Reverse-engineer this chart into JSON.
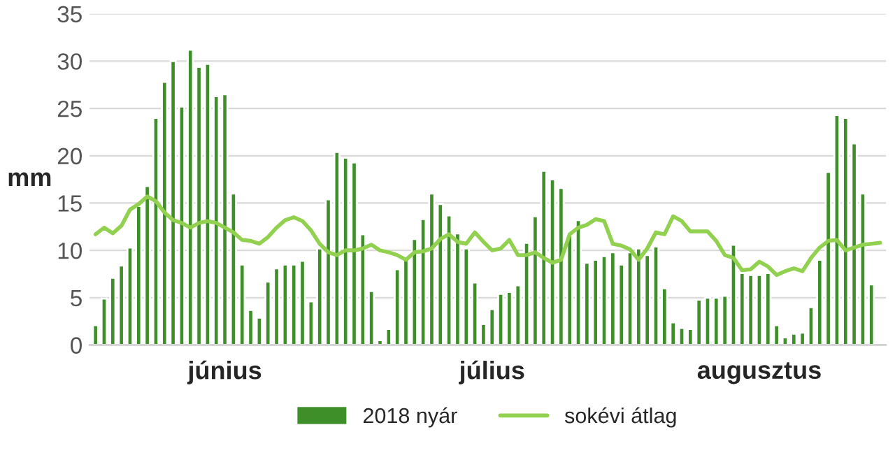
{
  "chart_data": {
    "type": "bar",
    "ylabel": "mm",
    "categories": [
      null,
      null,
      null,
      null,
      null,
      null,
      null,
      null,
      null,
      null,
      null,
      null,
      null,
      null,
      null,
      "június",
      null,
      null,
      null,
      null,
      null,
      null,
      null,
      null,
      null,
      null,
      null,
      null,
      null,
      null,
      null,
      null,
      null,
      null,
      null,
      null,
      null,
      null,
      null,
      null,
      null,
      null,
      null,
      null,
      null,
      null,
      "július",
      null,
      null,
      null,
      null,
      null,
      null,
      null,
      null,
      null,
      null,
      null,
      null,
      null,
      null,
      null,
      null,
      null,
      null,
      null,
      null,
      null,
      null,
      null,
      null,
      null,
      null,
      null,
      null,
      null,
      null,
      "augusztus",
      null,
      null,
      null,
      null,
      null,
      null,
      null,
      null,
      null,
      null,
      null,
      null,
      null,
      null
    ],
    "series": [
      {
        "name": "2018 nyár",
        "color": "#3e8e2a",
        "values": [
          2.1,
          4.9,
          7.1,
          8.4,
          10.3,
          14.7,
          16.8,
          24.0,
          27.8,
          30.0,
          25.2,
          31.2,
          29.4,
          29.7,
          26.3,
          26.5,
          16.0,
          8.5,
          3.7,
          2.9,
          6.7,
          8.1,
          8.5,
          8.5,
          8.9,
          4.6,
          10.2,
          15.4,
          20.4,
          19.8,
          19.3,
          11.7,
          5.7,
          0.5,
          1.7,
          8.0,
          9.2,
          11.2,
          13.3,
          16.0,
          14.9,
          13.7,
          11.8,
          10.2,
          6.6,
          2.2,
          3.8,
          5.4,
          5.6,
          6.3,
          10.8,
          13.6,
          18.4,
          17.5,
          16.6,
          11.8,
          13.2,
          8.7,
          9.0,
          9.4,
          9.8,
          8.5,
          9.8,
          10.2,
          9.5,
          10.4,
          6.0,
          2.4,
          1.8,
          1.7,
          4.8,
          5.0,
          5.0,
          5.2,
          10.6,
          7.6,
          7.4,
          7.4,
          7.6,
          2.1,
          0.8,
          1.2,
          1.3,
          4.0,
          9.0,
          18.3,
          24.3,
          24.0,
          21.3,
          16.0,
          6.4,
          null
        ]
      },
      {
        "name": "sokévi átlag",
        "type": "line",
        "color": "#92d050",
        "values": [
          11.7,
          12.4,
          11.8,
          12.6,
          14.3,
          14.9,
          15.7,
          15.2,
          14.0,
          13.2,
          12.9,
          12.4,
          12.9,
          13.1,
          12.9,
          12.4,
          11.9,
          11.1,
          11.0,
          10.7,
          11.4,
          12.4,
          13.2,
          13.5,
          13.1,
          12.1,
          10.7,
          9.8,
          9.5,
          10.0,
          10.0,
          10.2,
          10.6,
          10.0,
          9.8,
          9.5,
          9.0,
          9.8,
          9.9,
          10.2,
          11.2,
          11.7,
          10.9,
          10.7,
          11.9,
          10.9,
          10.0,
          10.2,
          11.1,
          9.5,
          9.5,
          9.8,
          9.2,
          8.7,
          9.0,
          11.7,
          12.4,
          12.7,
          13.3,
          13.1,
          10.7,
          10.5,
          10.1,
          9.0,
          10.2,
          11.9,
          11.7,
          13.6,
          13.1,
          12.0,
          12.0,
          12.0,
          11.0,
          9.5,
          9.2,
          7.9,
          8.0,
          8.8,
          8.3,
          7.4,
          7.8,
          8.1,
          7.8,
          9.2,
          10.3,
          11.0,
          11.1,
          10.0,
          10.3,
          10.6,
          10.7,
          10.8
        ]
      }
    ],
    "ylim": [
      0,
      35
    ],
    "yticks": [
      0,
      5,
      10,
      15,
      20,
      25,
      30,
      35
    ],
    "grid": "y",
    "legend": "bottom",
    "line_style": "solid",
    "marker": "none"
  }
}
